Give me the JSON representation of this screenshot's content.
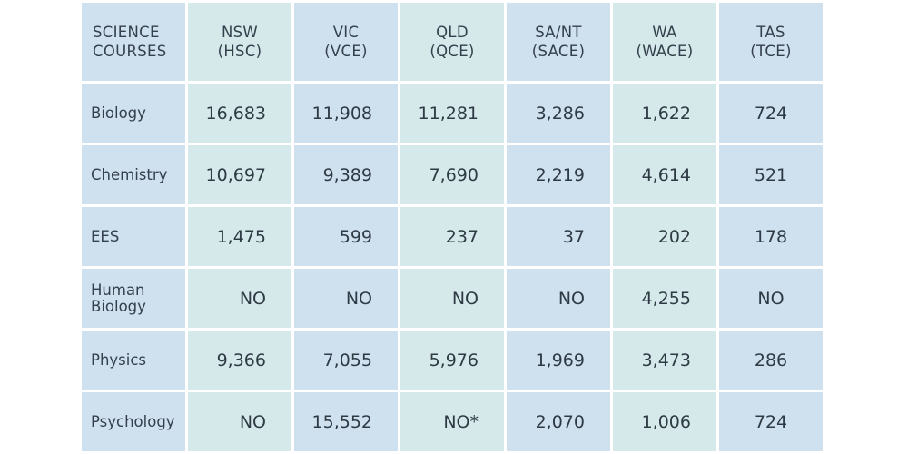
{
  "table": {
    "header": {
      "course": [
        "SCIENCE",
        "COURSES"
      ],
      "states": [
        [
          "NSW",
          "(HSC)"
        ],
        [
          "VIC",
          "(VCE)"
        ],
        [
          "QLD",
          "(QCE)"
        ],
        [
          "SA/NT",
          "(SACE)"
        ],
        [
          "WA",
          "(WACE)"
        ],
        [
          "TAS",
          "(TCE)"
        ]
      ]
    },
    "rows": [
      {
        "course": [
          "Biology"
        ],
        "values": [
          "16,683",
          "11,908",
          "11,281",
          "3,286",
          "1,622",
          "724"
        ]
      },
      {
        "course": [
          "Chemistry"
        ],
        "values": [
          "10,697",
          "9,389",
          "7,690",
          "2,219",
          "4,614",
          "521"
        ]
      },
      {
        "course": [
          "EES"
        ],
        "values": [
          "1,475",
          "599",
          "237",
          "37",
          "202",
          "178"
        ]
      },
      {
        "course": [
          "Human",
          "Biology"
        ],
        "values": [
          "NO",
          "NO",
          "NO",
          "NO",
          "4,255",
          "NO"
        ]
      },
      {
        "course": [
          "Physics"
        ],
        "values": [
          "9,366",
          "7,055",
          "5,976",
          "1,969",
          "3,473",
          "286"
        ]
      },
      {
        "course": [
          "Psychology"
        ],
        "values": [
          "NO",
          "15,552",
          "NO*",
          "2,070",
          "1,006",
          "724"
        ]
      }
    ],
    "colors": {
      "blue_cell": "#cfe0ef",
      "green_cell": "#d5e8ea",
      "text": "#2f3b45"
    }
  }
}
